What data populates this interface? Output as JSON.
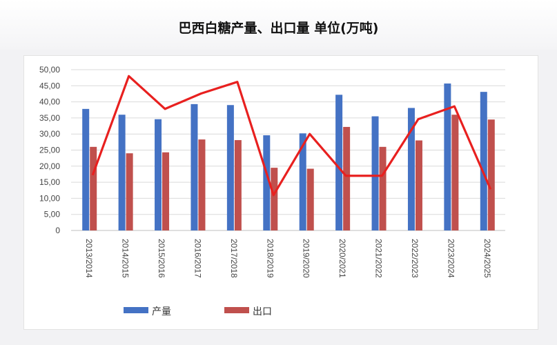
{
  "title": "巴西白糖产量、出口量  单位(万吨)",
  "colors": {
    "production": "#4472c4",
    "export": "#c0504d",
    "export_line": "#e8201f",
    "grid": "#d9d9d9"
  },
  "chart_data": {
    "type": "bar",
    "categories": [
      "2013/2014",
      "2014/2015",
      "2015/2016",
      "2016/2017",
      "2017/2018",
      "2018/2019",
      "2019/2020",
      "2020/2021",
      "2021/2022",
      "2022/2023",
      "2023/2024",
      "2024/2025"
    ],
    "series": [
      {
        "name": "产量",
        "type": "bar",
        "values": [
          37.8,
          36.0,
          34.6,
          39.3,
          39.0,
          29.6,
          30.2,
          42.2,
          35.5,
          38.1,
          45.7,
          43.1
        ]
      },
      {
        "name": "出口",
        "type": "bar",
        "values": [
          26.0,
          24.0,
          24.3,
          28.3,
          28.1,
          19.5,
          19.2,
          32.2,
          26.0,
          28.0,
          36.0,
          34.5
        ]
      },
      {
        "type": "line",
        "values": [
          17.2,
          48.0,
          37.8,
          42.6,
          46.2,
          11.0,
          30.0,
          17.0,
          17.0,
          34.6,
          38.6,
          12.8
        ]
      }
    ],
    "yticks": [
      "0",
      "5,00",
      "10,00",
      "15,00",
      "20,00",
      "25,00",
      "30,00",
      "35,00",
      "40,00",
      "45,00",
      "50,00"
    ],
    "ylim": [
      0,
      50
    ],
    "grid": true,
    "legend": "bottom-left"
  }
}
